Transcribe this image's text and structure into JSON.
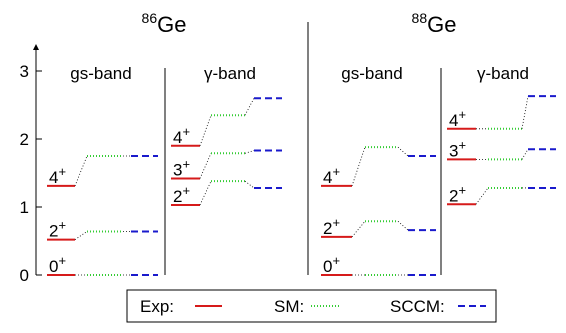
{
  "chart_data": {
    "type": "level-scheme",
    "y_axis": {
      "ylim": [
        0,
        3.2
      ],
      "ticks": [
        0,
        1,
        2,
        3
      ],
      "tick_labels": [
        "0",
        "1",
        "2",
        "3"
      ]
    },
    "legend": [
      {
        "label": "Exp:",
        "color": "#d61a1a",
        "style": "solid"
      },
      {
        "label": "SM:",
        "color": "#33cc33",
        "style": "dotted"
      },
      {
        "label": "SCCM:",
        "color": "#1a1acc",
        "style": "dashed"
      }
    ],
    "nuclei": [
      {
        "title": "Ge",
        "mass": "86",
        "bands": [
          {
            "name": "gs-band",
            "levels": [
              {
                "label": "0",
                "sup": "+",
                "exp": 0.0,
                "sm": 0.0,
                "sccm": 0.0
              },
              {
                "label": "2",
                "sup": "+",
                "exp": 0.52,
                "sm": 0.64,
                "sccm": 0.64
              },
              {
                "label": "4",
                "sup": "+",
                "exp": 1.31,
                "sm": 1.75,
                "sccm": 1.75
              }
            ]
          },
          {
            "name": "γ-band",
            "levels": [
              {
                "label": "2",
                "sup": "+",
                "exp": 1.03,
                "sm": 1.38,
                "sccm": 1.28
              },
              {
                "label": "3",
                "sup": "+",
                "exp": 1.42,
                "sm": 1.79,
                "sccm": 1.83
              },
              {
                "label": "4",
                "sup": "+",
                "exp": 1.9,
                "sm": 2.35,
                "sccm": 2.6
              }
            ]
          }
        ]
      },
      {
        "title": "Ge",
        "mass": "88",
        "bands": [
          {
            "name": "gs-band",
            "levels": [
              {
                "label": "0",
                "sup": "+",
                "exp": 0.0,
                "sm": 0.0,
                "sccm": 0.0
              },
              {
                "label": "2",
                "sup": "+",
                "exp": 0.56,
                "sm": 0.79,
                "sccm": 0.66
              },
              {
                "label": "4",
                "sup": "+",
                "exp": 1.31,
                "sm": 1.88,
                "sccm": 1.75
              }
            ]
          },
          {
            "name": "γ-band",
            "levels": [
              {
                "label": "2",
                "sup": "+",
                "exp": 1.04,
                "sm": 1.28,
                "sccm": 1.28
              },
              {
                "label": "3",
                "sup": "+",
                "exp": 1.7,
                "sm": 1.7,
                "sccm": 1.85
              },
              {
                "label": "4",
                "sup": "+",
                "exp": 2.15,
                "sm": 2.15,
                "sccm": 2.63
              }
            ]
          }
        ]
      }
    ]
  }
}
